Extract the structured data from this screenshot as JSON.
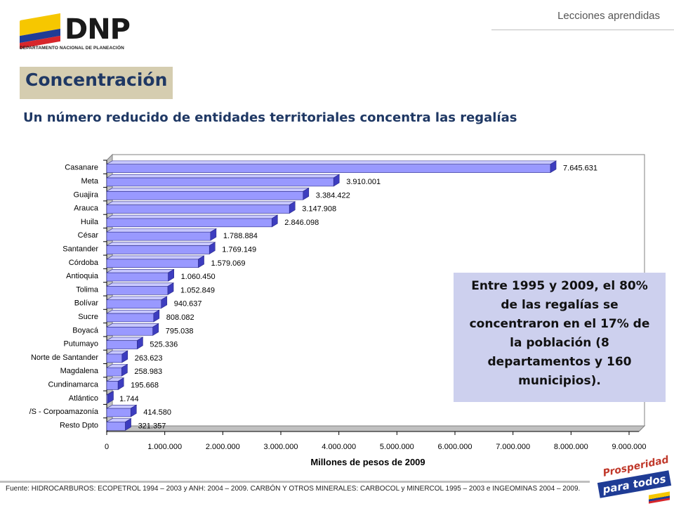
{
  "logo": {
    "text": "DNP",
    "subtext": "DEPARTAMENTO NACIONAL DE PLANEACIÓN"
  },
  "header": {
    "section": "Lecciones aprendidas"
  },
  "slide": {
    "title": "Concentración",
    "subtitle": "Un número reducido de entidades territoriales concentra las regalías"
  },
  "callout": {
    "text": "Entre 1995 y 2009, el 80% de las regalías se concentraron en el 17% de la población (8 departamentos y 160 municipios)."
  },
  "footer": {
    "source": "Fuente: HIDROCARBUROS: ECOPETROL 1994 – 2003 y ANH: 2004 – 2009. CARBÓN Y OTROS MINERALES: CARBOCOL y MINERCOL 1995 – 2003 e INGEOMINAS 2004 – 2009."
  },
  "brand": {
    "line1": "Prosperidad",
    "line2": "para todos"
  },
  "colors": {
    "bar_face": "#9999ff",
    "bar_side": "#3d3dbf",
    "bar_top": "#c8c8ff",
    "title_box": "#d5cdb0",
    "title_text": "#1f3864",
    "callout_bg": "#cdd0ee"
  },
  "chart_data": {
    "type": "bar",
    "orientation": "horizontal",
    "style": "3d",
    "categories": [
      "Casanare",
      "Meta",
      "Guajira",
      "Arauca",
      "Huila",
      "César",
      "Santander",
      "Córdoba",
      "Antioquia",
      "Tolima",
      "Bolívar",
      "Sucre",
      "Boyacá",
      "Putumayo",
      "Norte de Santander",
      "Magdalena",
      "Cundinamarca",
      "Atlántico",
      "/S - Corpoamazonía",
      "Resto Dpto"
    ],
    "values": [
      7645631,
      3910001,
      3384422,
      3147908,
      2846098,
      1788884,
      1769149,
      1579069,
      1060450,
      1052849,
      940637,
      808082,
      795038,
      525336,
      263623,
      258983,
      195668,
      1744,
      414580,
      321357
    ],
    "value_labels": [
      "7.645.631",
      "3.910.001",
      "3.384.422",
      "3.147.908",
      "2.846.098",
      "1.788.884",
      "1.769.149",
      "1.579.069",
      "1.060.450",
      "1.052.849",
      "940.637",
      "808.082",
      "795.038",
      "525.336",
      "263.623",
      "258.983",
      "195.668",
      "1.744",
      "414.580",
      "321.357"
    ],
    "xlabel": "Millones de pesos de 2009",
    "xlim": [
      0,
      9000000
    ],
    "xticks": [
      0,
      1000000,
      2000000,
      3000000,
      4000000,
      5000000,
      6000000,
      7000000,
      8000000,
      9000000
    ],
    "xtick_labels": [
      "0",
      "1.000.000",
      "2.000.000",
      "3.000.000",
      "4.000.000",
      "5.000.000",
      "6.000.000",
      "7.000.000",
      "8.000.000",
      "9.000.000"
    ],
    "grid": false
  }
}
